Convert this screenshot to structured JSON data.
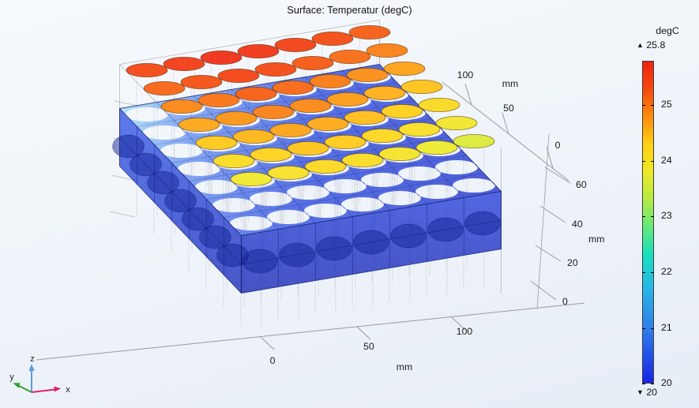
{
  "title": "Surface: Temperatur (degC)",
  "colorbar": {
    "unit": "degC",
    "max_marker": "▲",
    "max_label": "25.8",
    "min_marker": "▼",
    "min_label": "20",
    "tick_labels": [
      "25",
      "24",
      "23",
      "22",
      "21",
      "20"
    ],
    "tick_values": [
      25,
      24,
      23,
      22,
      21,
      20
    ],
    "range_max": 25.8,
    "range_min": 20
  },
  "axes": {
    "x": {
      "unit": "mm",
      "tick_labels": [
        "0",
        "50",
        "100"
      ]
    },
    "y": {
      "unit": "mm",
      "tick_labels": [
        "100",
        "50",
        "0"
      ]
    },
    "z": {
      "unit": "mm",
      "tick_labels": [
        "0",
        "20",
        "40",
        "60"
      ]
    }
  },
  "triad": {
    "x_label": "x",
    "y_label": "y",
    "z_label": "z"
  },
  "chart_data": {
    "type": "3d-surface",
    "title": "Surface: Temperatur (degC)",
    "field": "Temperatur",
    "unit": "degC",
    "temp_max": 25.8,
    "temp_min": 20,
    "colorbar_ticks": [
      25,
      24,
      23,
      22,
      21,
      20
    ],
    "x_axis": {
      "unit": "mm",
      "ticks": [
        0,
        50,
        100
      ]
    },
    "y_axis": {
      "unit": "mm",
      "ticks": [
        100,
        50,
        0
      ]
    },
    "z_axis": {
      "unit": "mm",
      "ticks": [
        0,
        20,
        40,
        60
      ]
    },
    "model": {
      "description": "7x7 grid of cylindrical battery cells piercing a translucent blue cooling plate; cell tops are hottest (red-orange) toward the back rows, cooler (yellow) toward the front, plate region near minimum temperature",
      "rows": 7,
      "cols": 7,
      "hottest_region_temp": 25.8,
      "coolest_region_temp": 20
    },
    "colormap": [
      [
        20.0,
        "#1525e6"
      ],
      [
        21.0,
        "#2f7fea"
      ],
      [
        21.7,
        "#28b5e6"
      ],
      [
        22.3,
        "#16dfbe"
      ],
      [
        22.8,
        "#63e87a"
      ],
      [
        23.3,
        "#b2ea46"
      ],
      [
        23.8,
        "#eeea28"
      ],
      [
        24.3,
        "#ffcf12"
      ],
      [
        24.8,
        "#fb8d0e"
      ],
      [
        25.3,
        "#f44a0c"
      ],
      [
        25.8,
        "#ee2211"
      ]
    ]
  }
}
